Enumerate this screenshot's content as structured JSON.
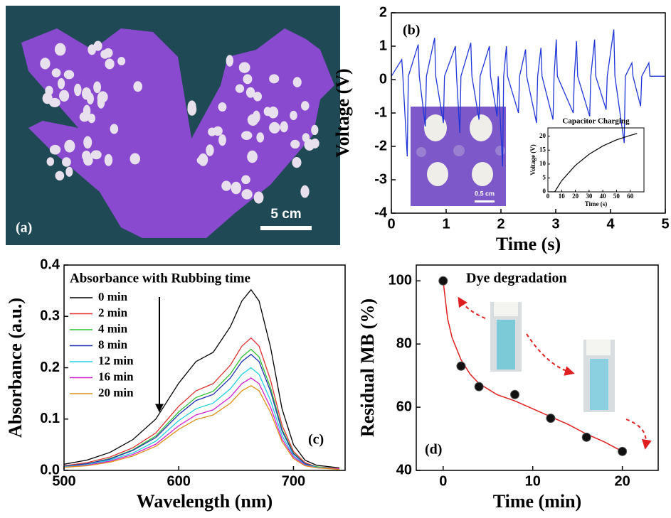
{
  "photo": {
    "label": "(a)",
    "scale_bar": "5 cm"
  },
  "inset_photo": {
    "scale_bar": "0.5 cm"
  },
  "chart_data": [
    {
      "type": "line",
      "label": "(b)",
      "xlabel": "Time (s)",
      "ylabel": "Voltage (V)",
      "xlim": [
        0,
        5
      ],
      "xticks": [
        0,
        1,
        2,
        3,
        4,
        5
      ],
      "ylim": [
        -4,
        2
      ],
      "yticks": [
        -4,
        -3,
        -2,
        -1,
        0,
        1,
        2
      ],
      "x": [
        0,
        0.19,
        0.21,
        0.29,
        0.31,
        0.49,
        0.51,
        0.62,
        0.64,
        0.79,
        0.81,
        0.95,
        0.97,
        1.17,
        1.19,
        1.25,
        1.27,
        1.45,
        1.47,
        1.6,
        1.62,
        1.79,
        1.81,
        1.93,
        1.95,
        2.03,
        2.05,
        2.1,
        2.12,
        2.32,
        2.34,
        2.45,
        2.47,
        2.65,
        2.67,
        2.73,
        2.75,
        2.95,
        2.97,
        3.01,
        3.03,
        3.32,
        3.34,
        3.38,
        3.4,
        3.62,
        3.64,
        3.71,
        3.73,
        3.92,
        3.94,
        4.06,
        4.08,
        4.25,
        4.27,
        4.39,
        4.41,
        4.55,
        4.57,
        4.7,
        4.72,
        5
      ],
      "series": [
        {
          "color": "#1f35d8",
          "values": [
            0.1,
            0.6,
            0.1,
            -2.3,
            0.1,
            1.05,
            0.1,
            -1.4,
            0.1,
            1.25,
            0.1,
            -1.3,
            0.1,
            1.0,
            0.1,
            -1.6,
            0.1,
            1.1,
            0.1,
            -1.2,
            0.1,
            1.0,
            0.1,
            -1.1,
            0.1,
            -2.6,
            0.1,
            1.0,
            0.1,
            -1.0,
            0.1,
            0.9,
            0.1,
            -1.3,
            0.1,
            0.95,
            0.1,
            -1.2,
            0.1,
            1.2,
            0.1,
            -1.0,
            0.1,
            1.15,
            0.1,
            -1.1,
            0.1,
            1.2,
            0.1,
            -0.9,
            0.1,
            1.5,
            0.1,
            -1.9,
            0.1,
            0.5,
            0.1,
            -0.8,
            0.1,
            0.5,
            0.1,
            0.1
          ]
        }
      ]
    },
    {
      "type": "line",
      "title": "Capacitor Charging",
      "xlabel": "Time (s)",
      "ylabel": "Voltage (V)",
      "xlim": [
        0,
        70
      ],
      "xticks": [
        0,
        10,
        20,
        30,
        40,
        50,
        60
      ],
      "ylim": [
        0,
        23
      ],
      "yticks": [
        0,
        5,
        10,
        15,
        20
      ],
      "x": [
        0,
        5,
        10,
        20,
        30,
        40,
        50,
        60,
        65
      ],
      "series": [
        {
          "color": "#000000",
          "values": [
            0,
            0,
            4,
            9.5,
            13.5,
            16.5,
            18.7,
            20.3,
            21
          ]
        }
      ]
    },
    {
      "type": "line",
      "label": "(c)",
      "annotation": "Absorbance with Rubbing time",
      "xlabel": "Wavelength (nm)",
      "ylabel": "Absorbance (a.u.)",
      "xlim": [
        500,
        745
      ],
      "xticks": [
        500,
        600,
        700
      ],
      "ylim": [
        0,
        0.4
      ],
      "yticks": [
        {
          "value": 0,
          "label": "0.0"
        },
        0.1,
        0.2,
        0.3,
        0.4
      ],
      "x": [
        500,
        520,
        540,
        560,
        580,
        600,
        615,
        630,
        645,
        655,
        663,
        670,
        680,
        690,
        700,
        710,
        720,
        740
      ],
      "series": [
        {
          "name": "0 min",
          "color": "#000000",
          "values": [
            0.012,
            0.02,
            0.035,
            0.06,
            0.1,
            0.17,
            0.212,
            0.23,
            0.28,
            0.33,
            0.352,
            0.33,
            0.24,
            0.12,
            0.05,
            0.02,
            0.01,
            0.005
          ]
        },
        {
          "name": "2 min",
          "color": "#e03030",
          "values": [
            0.009,
            0.015,
            0.026,
            0.044,
            0.073,
            0.125,
            0.155,
            0.169,
            0.205,
            0.242,
            0.258,
            0.242,
            0.176,
            0.088,
            0.037,
            0.015,
            0.007,
            0.004
          ]
        },
        {
          "name": "4 min",
          "color": "#30c030",
          "values": [
            0.008,
            0.013,
            0.023,
            0.04,
            0.067,
            0.114,
            0.142,
            0.154,
            0.188,
            0.221,
            0.236,
            0.221,
            0.161,
            0.08,
            0.034,
            0.013,
            0.007,
            0.003
          ]
        },
        {
          "name": "8 min",
          "color": "#2030b0",
          "values": [
            0.008,
            0.013,
            0.022,
            0.039,
            0.064,
            0.109,
            0.136,
            0.148,
            0.18,
            0.212,
            0.226,
            0.212,
            0.154,
            0.077,
            0.032,
            0.013,
            0.006,
            0.003
          ]
        },
        {
          "name": "12 min",
          "color": "#20d0e0",
          "values": [
            0.007,
            0.011,
            0.02,
            0.034,
            0.057,
            0.097,
            0.12,
            0.131,
            0.159,
            0.187,
            0.2,
            0.187,
            0.136,
            0.068,
            0.028,
            0.011,
            0.006,
            0.003
          ]
        },
        {
          "name": "16 min",
          "color": "#d020d0",
          "values": [
            0.006,
            0.01,
            0.018,
            0.031,
            0.051,
            0.087,
            0.108,
            0.118,
            0.143,
            0.169,
            0.18,
            0.169,
            0.123,
            0.061,
            0.026,
            0.01,
            0.005,
            0.003
          ]
        },
        {
          "name": "20 min",
          "color": "#e0901a",
          "values": [
            0.006,
            0.009,
            0.016,
            0.028,
            0.047,
            0.08,
            0.099,
            0.108,
            0.131,
            0.155,
            0.165,
            0.155,
            0.113,
            0.056,
            0.023,
            0.009,
            0.005,
            0.002
          ]
        }
      ]
    },
    {
      "type": "scatter",
      "label": "(d)",
      "annotation": "Dye degradation",
      "xlabel": "Time (min)",
      "ylabel": "Residual MB (%)",
      "xlim": [
        -3,
        24
      ],
      "xticks": [
        0,
        10,
        20
      ],
      "ylim": [
        40,
        105
      ],
      "yticks": [
        40,
        60,
        80,
        100
      ],
      "x": [
        0,
        2,
        4,
        8,
        12,
        16,
        20
      ],
      "values": [
        100,
        73,
        66.5,
        64,
        56.5,
        50.5,
        46
      ],
      "color": "#111111",
      "fit_x": [
        0,
        0.5,
        1,
        2,
        3,
        4,
        6,
        8,
        10,
        12,
        14,
        16,
        18,
        20
      ],
      "fit_values": [
        100,
        88,
        82,
        75,
        70.5,
        67.5,
        64,
        62,
        59.5,
        57,
        54.5,
        51.5,
        49,
        46
      ],
      "fit_color": "#e02020"
    }
  ]
}
